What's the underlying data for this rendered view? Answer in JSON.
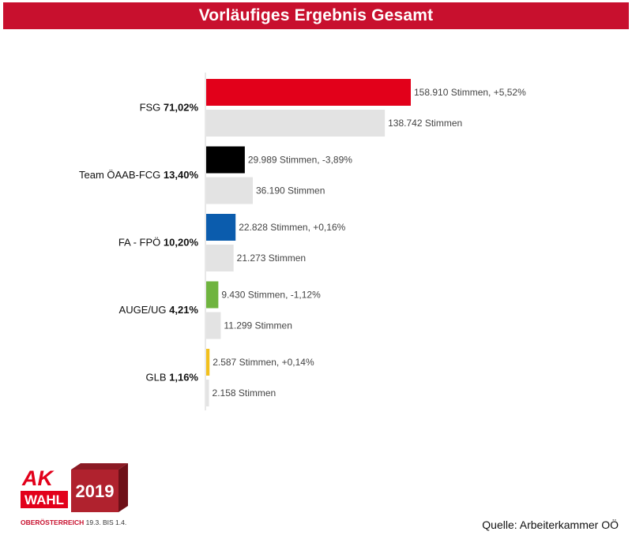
{
  "title": "Vorläufiges Ergebnis Gesamt",
  "source": "Quelle: Arbeiterkammer OÖ",
  "logo": {
    "ak": "AK",
    "wahl": "WAHL",
    "year": "2019",
    "region": "OBERÖSTERREICH",
    "dates": "19.3. BIS 1.4."
  },
  "chart_data": {
    "type": "bar",
    "orientation": "horizontal",
    "title": "Vorläufiges Ergebnis Gesamt",
    "categories": [
      "FSG",
      "Team ÖAAB-FCG",
      "FA - FPÖ",
      "AUGE/UG",
      "GLB"
    ],
    "shares": [
      "71,02%",
      "13,40%",
      "10,20%",
      "4,21%",
      "1,16%"
    ],
    "series": [
      {
        "values": [
          158910,
          29989,
          22828,
          9430,
          2587
        ],
        "labels": [
          "158.910 Stimmen, +5,52%",
          "29.989 Stimmen, -3,89%",
          "22.828 Stimmen, +0,16%",
          "9.430 Stimmen, -1,12%",
          "2.587 Stimmen, +0,14%"
        ],
        "colors": [
          "#e2001a",
          "#000000",
          "#0b5cad",
          "#6fb43f",
          "#f2c01d"
        ]
      },
      {
        "values": [
          138742,
          36190,
          21273,
          11299,
          2158
        ],
        "labels": [
          "138.742 Stimmen",
          "36.190 Stimmen",
          "21.273 Stimmen",
          "11.299 Stimmen",
          "2.158 Stimmen"
        ],
        "colors": [
          "#e3e3e3",
          "#e3e3e3",
          "#e3e3e3",
          "#e3e3e3",
          "#e3e3e3"
        ]
      }
    ],
    "xlim": [
      0,
      158910
    ],
    "grid": false,
    "legend": "none"
  }
}
